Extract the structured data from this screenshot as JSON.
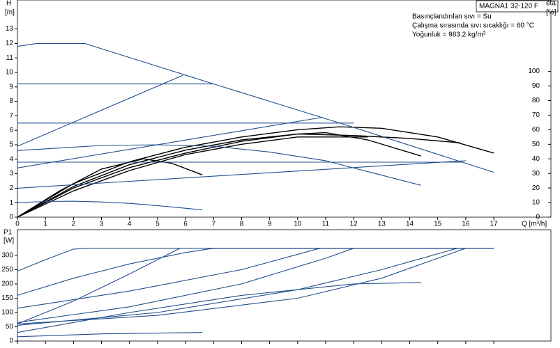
{
  "chart_data": [
    {
      "type": "line",
      "title": "MAGNA1 32-120 F",
      "annotations": [
        "Basınçlandırılan sıvı = Su",
        "Çalışma sırasında sıvı sıcaklığı = 60 °C",
        "Yoğunluk = 983.2 kg/m³"
      ],
      "y_label": "H",
      "y_unit": "[m]",
      "y2_label": "eta",
      "y2_unit": "[%]",
      "x_label": "Q [m³/h]",
      "xlim": [
        0,
        19.04
      ],
      "xticks": [
        0,
        1,
        2,
        3,
        4,
        5,
        6,
        7,
        8,
        9,
        10,
        11,
        12,
        13,
        14,
        15,
        16,
        17
      ],
      "ylim": [
        0,
        15
      ],
      "yticks": [
        0,
        1,
        2,
        3,
        4,
        5,
        6,
        7,
        8,
        9,
        10,
        11,
        12,
        13
      ],
      "y2lim": [
        0,
        149
      ],
      "y2ticks": [
        0,
        10,
        20,
        30,
        40,
        50,
        60,
        70,
        80,
        90,
        100
      ],
      "series": [
        {
          "color": "#1f4e8c",
          "x": [
            0,
            0.7,
            2.4,
            7,
            12,
            17
          ],
          "values": [
            11.8,
            12,
            12,
            9.2,
            6.2,
            3.1
          ]
        },
        {
          "color": "#1f4e8c",
          "x": [
            0,
            7
          ],
          "values": [
            9.2,
            9.2
          ]
        },
        {
          "color": "#1f4e8c",
          "x": [
            0,
            12
          ],
          "values": [
            6.5,
            6.5
          ]
        },
        {
          "color": "#1f4e8c",
          "x": [
            0,
            15.9
          ],
          "values": [
            3.8,
            3.8
          ]
        },
        {
          "color": "#1f4e8c",
          "x": [
            0,
            5.9
          ],
          "values": [
            4.9,
            9.8
          ]
        },
        {
          "color": "#1f4e8c",
          "x": [
            0,
            10.9
          ],
          "values": [
            3.4,
            6.9
          ]
        },
        {
          "color": "#1f4e8c",
          "x": [
            0,
            16
          ],
          "values": [
            2,
            3.9
          ]
        },
        {
          "color": "#1f4e8c",
          "x": [
            0,
            3,
            5,
            7,
            9,
            11,
            13,
            14.4
          ],
          "values": [
            4.6,
            4.95,
            5,
            4.9,
            4.5,
            3.9,
            2.9,
            2.2
          ]
        },
        {
          "color": "#1f4e8c",
          "x": [
            0,
            1,
            2,
            3,
            4,
            5,
            6.6
          ],
          "values": [
            1,
            1.08,
            1.1,
            1.05,
            0.95,
            0.8,
            0.5
          ]
        },
        {
          "color": "#000000",
          "axis": "y2",
          "x": [
            0,
            2,
            4,
            6,
            8,
            10,
            11.5,
            13,
            15,
            17
          ],
          "values": [
            0,
            23,
            38,
            48,
            55,
            60,
            62,
            61,
            55,
            44
          ]
        },
        {
          "color": "#000000",
          "axis": "y2",
          "x": [
            0,
            2,
            4,
            6,
            8,
            10,
            12,
            14,
            15.8
          ],
          "values": [
            0,
            21,
            36,
            46,
            53,
            57,
            56,
            54,
            51
          ]
        },
        {
          "color": "#000000",
          "axis": "y2",
          "x": [
            0,
            2,
            4,
            6,
            8,
            10,
            11,
            12.5,
            14.4
          ],
          "values": [
            0,
            20,
            34,
            44,
            52,
            57,
            58,
            53,
            42
          ]
        },
        {
          "color": "#000000",
          "axis": "y2",
          "x": [
            0,
            2,
            4,
            6,
            8,
            10,
            12.5
          ],
          "values": [
            0,
            18,
            32,
            43,
            50,
            55,
            55
          ]
        },
        {
          "color": "#000000",
          "axis": "y2",
          "x": [
            0,
            1.5,
            3,
            4.5,
            5.5,
            6.6
          ],
          "values": [
            0,
            18,
            33,
            40,
            37,
            29
          ]
        }
      ]
    },
    {
      "type": "line",
      "y_label": "P1",
      "y_unit": "[W]",
      "xtick_labels": false,
      "xlim": [
        0,
        19.04
      ],
      "xticks": [
        0,
        1,
        2,
        3,
        4,
        5,
        6,
        7,
        8,
        9,
        10,
        11,
        12,
        13,
        14,
        15,
        16,
        17
      ],
      "ylim": [
        0,
        390
      ],
      "yticks": [
        0,
        50,
        100,
        150,
        200,
        250,
        300
      ],
      "series": [
        {
          "color": "#1f4e8c",
          "x": [
            0,
            1,
            2,
            2.5,
            17
          ],
          "values": [
            245,
            285,
            322,
            325,
            325
          ]
        },
        {
          "color": "#1f4e8c",
          "x": [
            0,
            2,
            4,
            6,
            7,
            17
          ],
          "values": [
            160,
            220,
            270,
            310,
            325,
            325
          ]
        },
        {
          "color": "#1f4e8c",
          "x": [
            0,
            2,
            4,
            5.8
          ],
          "values": [
            60,
            140,
            235,
            325
          ]
        },
        {
          "color": "#1f4e8c",
          "x": [
            0,
            4,
            8,
            10.8
          ],
          "values": [
            115,
            175,
            250,
            325
          ]
        },
        {
          "color": "#1f4e8c",
          "x": [
            0,
            4,
            8,
            11,
            12
          ],
          "values": [
            65,
            120,
            200,
            290,
            325
          ]
        },
        {
          "color": "#1f4e8c",
          "x": [
            0,
            5,
            10,
            13,
            15.7
          ],
          "values": [
            55,
            100,
            180,
            250,
            325
          ]
        },
        {
          "color": "#1f4e8c",
          "x": [
            0,
            5,
            10,
            13,
            16
          ],
          "values": [
            60,
            90,
            150,
            220,
            325
          ]
        },
        {
          "color": "#1f4e8c",
          "x": [
            0,
            4,
            8,
            12,
            14.4
          ],
          "values": [
            30,
            100,
            160,
            200,
            205
          ]
        },
        {
          "color": "#1f4e8c",
          "x": [
            0,
            3,
            6.6
          ],
          "values": [
            15,
            25,
            30
          ]
        }
      ]
    }
  ]
}
